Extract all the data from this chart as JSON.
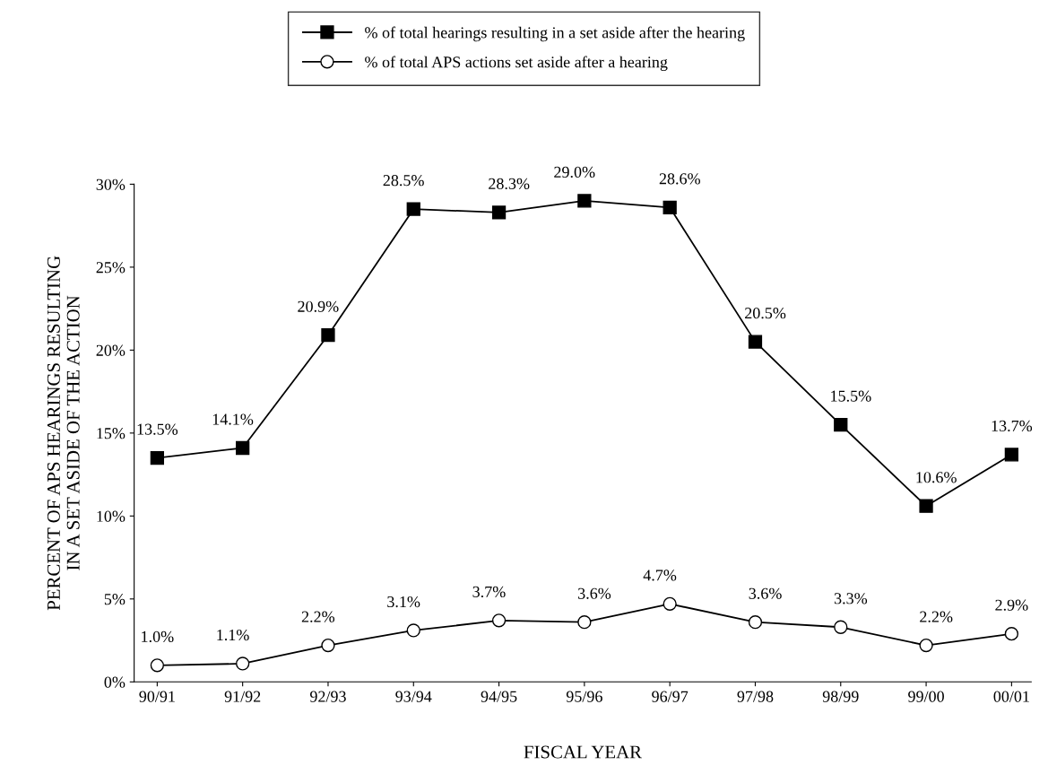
{
  "chart_data": {
    "type": "line",
    "xlabel": "FISCAL YEAR",
    "ylabel": "PERCENT OF APS HEARINGS RESULTING\nIN A SET ASIDE OF THE ACTION",
    "categories": [
      "90/91",
      "91/92",
      "92/93",
      "93/94",
      "94/95",
      "95/96",
      "96/97",
      "97/98",
      "98/99",
      "99/00",
      "00/01"
    ],
    "series": [
      {
        "name": "% of total hearings resulting in a set aside after the hearing",
        "color": "#000000",
        "marker": "square",
        "values": [
          13.5,
          14.1,
          20.9,
          28.5,
          28.3,
          29.0,
          28.6,
          20.5,
          15.5,
          10.6,
          13.7
        ],
        "value_labels": [
          "13.5%",
          "14.1%",
          "20.9%",
          "28.5%",
          "28.3%",
          "29.0%",
          "28.6%",
          "20.5%",
          "15.5%",
          "10.6%",
          "13.7%"
        ]
      },
      {
        "name": "% of total APS actions set aside after a hearing",
        "color": "#000000",
        "marker": "circle",
        "values": [
          1.0,
          1.1,
          2.2,
          3.1,
          3.7,
          3.6,
          4.7,
          3.6,
          3.3,
          2.2,
          2.9
        ],
        "value_labels": [
          "1.0%",
          "1.1%",
          "2.2%",
          "3.1%",
          "3.7%",
          "3.6%",
          "4.7%",
          "3.6%",
          "3.3%",
          "2.2%",
          "2.9%"
        ]
      }
    ],
    "ylim": [
      0,
      30
    ],
    "yticks": [
      {
        "value": 0,
        "label": "0%"
      },
      {
        "value": 5,
        "label": "5%"
      },
      {
        "value": 10,
        "label": "10%"
      },
      {
        "value": 15,
        "label": "15%"
      },
      {
        "value": 20,
        "label": "20%"
      },
      {
        "value": 25,
        "label": "25%"
      },
      {
        "value": 30,
        "label": "30%"
      }
    ],
    "line_style": "solid",
    "grid": false,
    "legend": "top"
  }
}
